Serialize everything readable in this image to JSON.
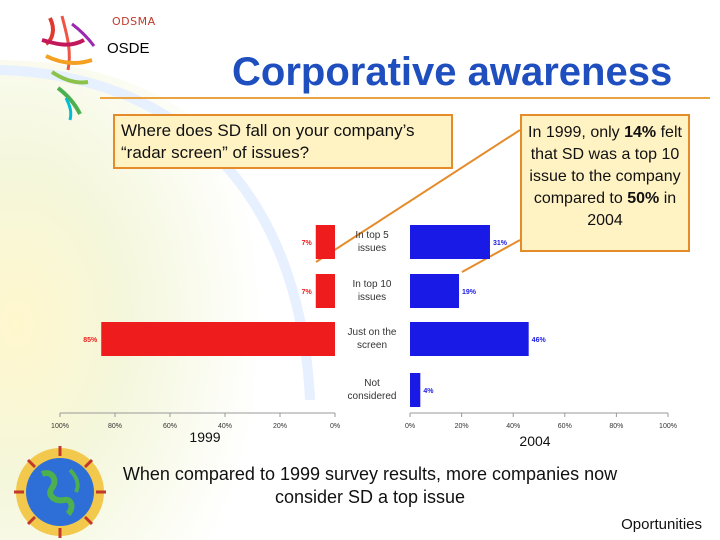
{
  "header": {
    "org_small": "ODSMA",
    "org": "OSDE",
    "title": "Corporative awareness"
  },
  "question": "Where does SD fall on your company’s “radar screen” of issues?",
  "callout": {
    "text_1": "In 1999, only ",
    "pct_1999": "14%",
    "text_2": " felt that SD was a top 10 issue to the company compared to ",
    "pct_2004": "50%",
    "text_3": " in  2004"
  },
  "bottom_text": "When compared to 1999 survey results, more companies now consider SD a top issue",
  "footer": "Oportunities",
  "colors": {
    "left_bars": "#ee1c1c",
    "right_bars": "#1a1ae6",
    "title": "#1f4fbf",
    "box_fill": "#fff3c4",
    "box_border": "#e58b2a"
  },
  "chart_data": {
    "type": "bar",
    "orientation": "horizontal-butterfly",
    "categories": [
      "In top 5 issues",
      "In top 10 issues",
      "Just on the screen",
      "Not considered"
    ],
    "series": [
      {
        "name": "1999",
        "values": [
          7,
          7,
          85,
          0
        ],
        "labels": [
          "7%",
          "7%",
          "85%",
          ""
        ]
      },
      {
        "name": "2004",
        "values": [
          31,
          19,
          46,
          4
        ],
        "labels": [
          "31%",
          "19%",
          "46%",
          "4%"
        ]
      }
    ],
    "left_axis_ticks": [
      "100%",
      "80%",
      "60%",
      "40%",
      "20%",
      "0%"
    ],
    "right_axis_ticks": [
      "0%",
      "20%",
      "40%",
      "60%",
      "80%",
      "100%"
    ],
    "left_axis_label": "1999",
    "right_axis_label": "2004",
    "xlim": [
      0,
      100
    ]
  }
}
